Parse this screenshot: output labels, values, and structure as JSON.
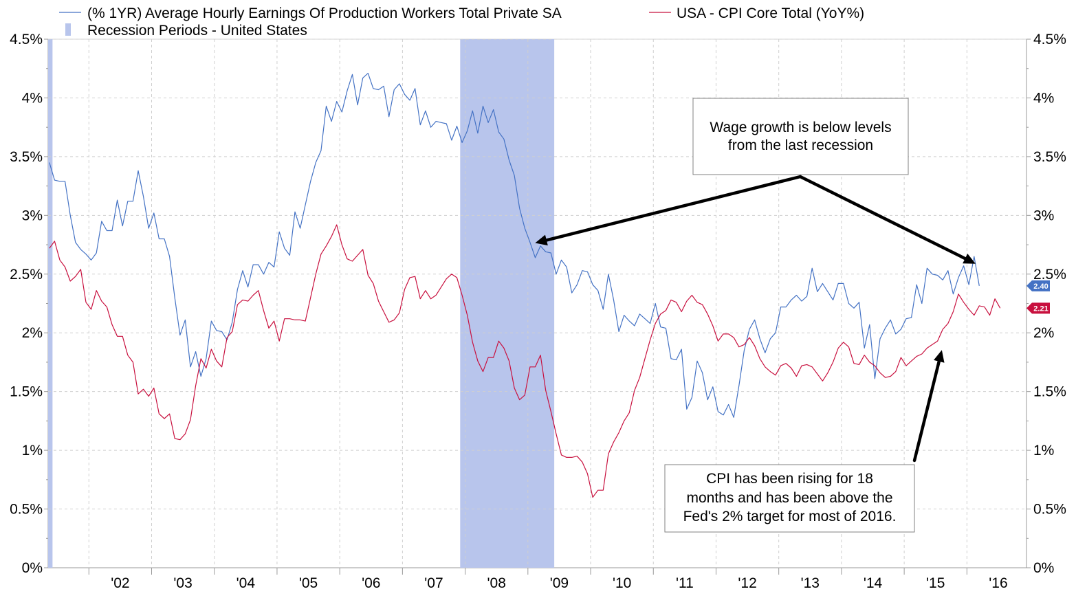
{
  "chart_data": {
    "type": "line",
    "legend": [
      {
        "label": "(% 1YR) Average Hourly Earnings Of Production Workers Total Private SA",
        "color": "#4472c4",
        "kind": "line"
      },
      {
        "label": "USA - CPI Core Total (YoY%)",
        "color": "#c8103e",
        "kind": "line"
      },
      {
        "label": "Recession Periods - United States",
        "color": "#b8c5ec",
        "kind": "box"
      }
    ],
    "x_tick_labels": [
      "'02",
      "'03",
      "'04",
      "'05",
      "'06",
      "'07",
      "'08",
      "'09",
      "'10",
      "'11",
      "'12",
      "'13",
      "'14",
      "'15",
      "'16"
    ],
    "x_tick_years": [
      2002,
      2003,
      2004,
      2005,
      2006,
      2007,
      2008,
      2009,
      2010,
      2011,
      2012,
      2013,
      2014,
      2015,
      2016
    ],
    "xlim": [
      2001.35,
      2016.95
    ],
    "ylim": [
      0,
      4.5
    ],
    "y_tick_labels": [
      "0%",
      "0.5%",
      "1%",
      "1.5%",
      "2%",
      "2.5%",
      "3%",
      "3.5%",
      "4%",
      "4.5%"
    ],
    "y_tick_values": [
      0,
      0.5,
      1,
      1.5,
      2,
      2.5,
      3,
      3.5,
      4,
      4.5
    ],
    "grid": true,
    "recessions": [
      [
        2001.2,
        2001.42
      ],
      [
        2007.92,
        2009.42
      ]
    ],
    "series": [
      {
        "name": "(% 1YR) Average Hourly Earnings Of Production Workers Total Private SA",
        "color": "#4472c4",
        "start": 2001.37,
        "step": 0.0833,
        "values": [
          3.45,
          3.3,
          3.29,
          3.29,
          3.0,
          2.77,
          2.71,
          2.67,
          2.62,
          2.68,
          2.95,
          2.87,
          2.87,
          3.13,
          2.91,
          3.12,
          3.12,
          3.38,
          3.16,
          2.89,
          3.02,
          2.8,
          2.8,
          2.65,
          2.3,
          1.98,
          2.11,
          1.71,
          1.84,
          1.63,
          1.78,
          2.1,
          2.02,
          2.01,
          1.94,
          2.09,
          2.37,
          2.53,
          2.39,
          2.58,
          2.58,
          2.5,
          2.6,
          2.56,
          2.86,
          2.72,
          2.66,
          3.03,
          2.89,
          3.09,
          3.29,
          3.45,
          3.55,
          3.93,
          3.8,
          3.97,
          3.88,
          4.06,
          4.2,
          3.94,
          4.17,
          4.21,
          4.08,
          4.07,
          4.1,
          3.84,
          4.07,
          4.12,
          4.03,
          3.98,
          4.08,
          3.77,
          3.89,
          3.75,
          3.8,
          3.79,
          3.78,
          3.64,
          3.76,
          3.62,
          3.72,
          3.89,
          3.7,
          3.93,
          3.79,
          3.9,
          3.71,
          3.65,
          3.47,
          3.34,
          3.06,
          2.89,
          2.77,
          2.64,
          2.74,
          2.69,
          2.68,
          2.5,
          2.62,
          2.56,
          2.34,
          2.41,
          2.53,
          2.52,
          2.41,
          2.36,
          2.2,
          2.5,
          2.28,
          2.01,
          2.15,
          2.1,
          2.06,
          2.16,
          2.12,
          2.08,
          2.25,
          2.05,
          2.04,
          1.78,
          1.77,
          1.86,
          1.35,
          1.45,
          1.76,
          1.66,
          1.43,
          1.54,
          1.33,
          1.3,
          1.39,
          1.28,
          1.55,
          1.85,
          2.03,
          2.11,
          1.95,
          1.83,
          1.95,
          2.0,
          2.22,
          2.22,
          2.28,
          2.32,
          2.27,
          2.31,
          2.55,
          2.35,
          2.42,
          2.35,
          2.28,
          2.42,
          2.42,
          2.25,
          2.21,
          2.26,
          1.87,
          2.07,
          1.61,
          1.95,
          2.04,
          2.11,
          1.99,
          2.03,
          2.12,
          2.13,
          2.41,
          2.25,
          2.55,
          2.5,
          2.49,
          2.45,
          2.53,
          2.33,
          2.47,
          2.57,
          2.41,
          2.65,
          2.4
        ]
      },
      {
        "name": "USA - CPI Core Total (YoY%)",
        "color": "#c8103e",
        "start": 2001.37,
        "step": 0.0833,
        "values": [
          2.72,
          2.78,
          2.62,
          2.56,
          2.44,
          2.48,
          2.54,
          2.26,
          2.2,
          2.36,
          2.27,
          2.22,
          2.07,
          1.97,
          1.97,
          1.81,
          1.75,
          1.48,
          1.52,
          1.46,
          1.53,
          1.31,
          1.27,
          1.31,
          1.1,
          1.09,
          1.14,
          1.26,
          1.55,
          1.78,
          1.7,
          1.86,
          1.76,
          1.71,
          1.96,
          2.01,
          2.24,
          2.28,
          2.27,
          2.32,
          2.36,
          2.19,
          2.04,
          2.1,
          1.93,
          2.12,
          2.12,
          2.11,
          2.11,
          2.1,
          2.3,
          2.5,
          2.67,
          2.74,
          2.82,
          2.92,
          2.75,
          2.63,
          2.61,
          2.66,
          2.71,
          2.49,
          2.42,
          2.27,
          2.18,
          2.09,
          2.11,
          2.17,
          2.37,
          2.47,
          2.48,
          2.29,
          2.36,
          2.29,
          2.32,
          2.39,
          2.46,
          2.5,
          2.47,
          2.32,
          2.15,
          1.92,
          1.76,
          1.67,
          1.79,
          1.79,
          1.93,
          1.87,
          1.76,
          1.53,
          1.43,
          1.47,
          1.71,
          1.71,
          1.81,
          1.51,
          1.33,
          1.14,
          0.96,
          0.94,
          0.94,
          0.95,
          0.9,
          0.8,
          0.6,
          0.66,
          0.66,
          0.97,
          1.07,
          1.15,
          1.25,
          1.32,
          1.51,
          1.62,
          1.78,
          1.94,
          2.08,
          2.16,
          2.19,
          2.28,
          2.26,
          2.18,
          2.27,
          2.32,
          2.26,
          2.24,
          2.16,
          2.06,
          1.93,
          1.99,
          1.99,
          1.96,
          1.88,
          1.9,
          1.96,
          1.89,
          1.78,
          1.71,
          1.67,
          1.64,
          1.72,
          1.74,
          1.7,
          1.63,
          1.72,
          1.73,
          1.71,
          1.65,
          1.59,
          1.66,
          1.75,
          1.87,
          1.92,
          1.88,
          1.74,
          1.73,
          1.81,
          1.75,
          1.72,
          1.66,
          1.62,
          1.63,
          1.67,
          1.79,
          1.72,
          1.76,
          1.8,
          1.82,
          1.87,
          1.9,
          1.93,
          2.03,
          2.08,
          2.18,
          2.33,
          2.26,
          2.2,
          2.15,
          2.23,
          2.22,
          2.15,
          2.29,
          2.21
        ]
      }
    ],
    "last_value_labels": [
      {
        "text": "2.40",
        "value": 2.4,
        "color": "#4472c4"
      },
      {
        "text": "2.21",
        "value": 2.21,
        "color": "#c8103e"
      }
    ],
    "annotations": [
      {
        "lines": [
          "Wage growth is below levels",
          "from the last recession"
        ],
        "arrows_to": [
          [
            2009.05,
            2.8
          ],
          [
            2016.05,
            2.6
          ]
        ]
      },
      {
        "lines": [
          "CPI has been rising for 18",
          "months and has been above the",
          "Fed's 2% target for most of 2016."
        ],
        "arrows_to": [
          [
            2015.6,
            1.9
          ]
        ]
      }
    ]
  }
}
